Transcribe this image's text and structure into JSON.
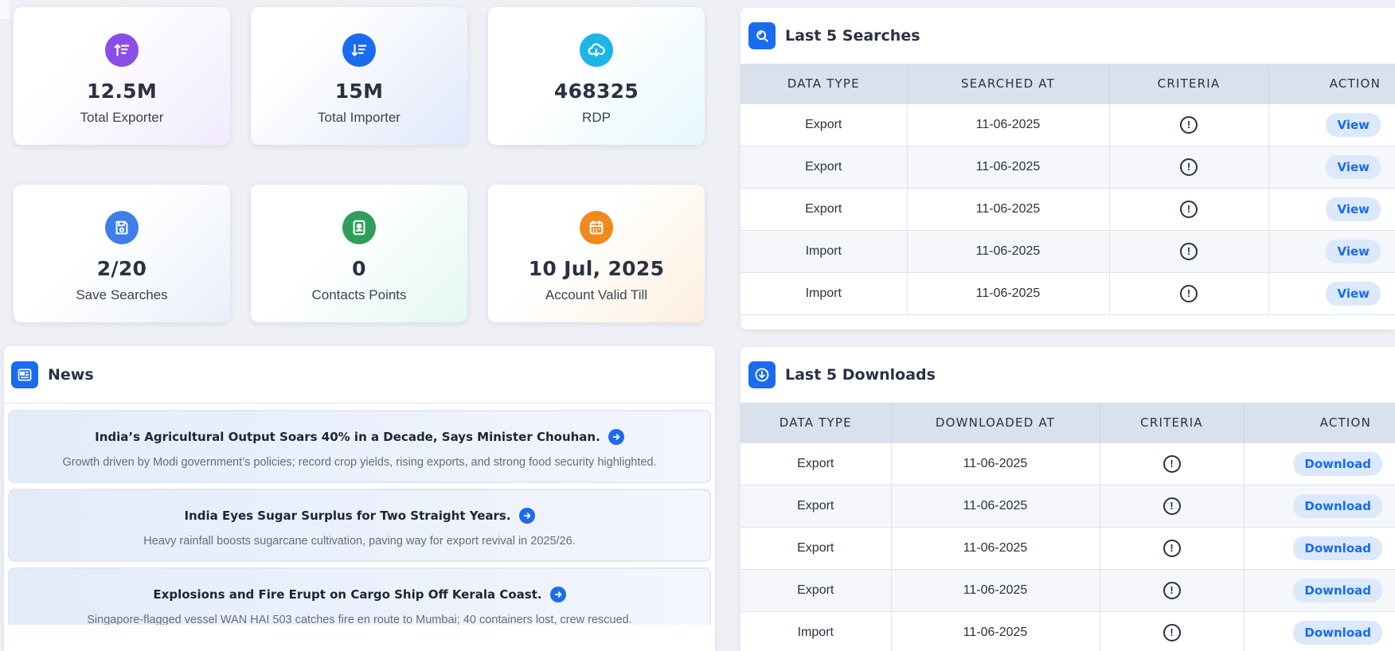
{
  "stats": [
    {
      "value": "12.5M",
      "label": "Total Exporter",
      "icon": "sort-ascending-icon",
      "color": "#8a4de8"
    },
    {
      "value": "15M",
      "label": "Total Importer",
      "icon": "sort-descending-icon",
      "color": "#1a6bf0"
    },
    {
      "value": "468325",
      "label": "RDP",
      "icon": "cloud-download-icon",
      "color": "#1bb5e6"
    },
    {
      "value": "2/20",
      "label": "Save Searches",
      "icon": "floppy-disk-icon",
      "color": "#3f7ee8"
    },
    {
      "value": "0",
      "label": "Contacts Points",
      "icon": "contact-card-icon",
      "color": "#2f9e5b"
    },
    {
      "value": "10 Jul, 2025",
      "label": "Account Valid Till",
      "icon": "calendar-icon",
      "color": "#f08a1c"
    }
  ],
  "news": {
    "title": "News",
    "items": [
      {
        "title": "India’s Agricultural Output Soars 40% in a Decade, Says Minister Chouhan.",
        "desc": "Growth driven by Modi government’s policies; record crop yields, rising exports, and strong food security highlighted."
      },
      {
        "title": "India Eyes Sugar Surplus for Two Straight Years.",
        "desc": "Heavy rainfall boosts sugarcane cultivation, paving way for export revival in 2025/26."
      },
      {
        "title": "Explosions and Fire Erupt on Cargo Ship Off Kerala Coast.",
        "desc": "Singapore-flagged vessel WAN HAI 503 catches fire en route to Mumbai; 40 containers lost, crew rescued."
      }
    ]
  },
  "searches": {
    "title": "Last 5 Searches",
    "headers": [
      "DATA TYPE",
      "SEARCHED AT",
      "CRITERIA",
      "ACTION"
    ],
    "action_label": "View",
    "rows": [
      {
        "type": "Export",
        "date": "11-06-2025"
      },
      {
        "type": "Export",
        "date": "11-06-2025"
      },
      {
        "type": "Export",
        "date": "11-06-2025"
      },
      {
        "type": "Import",
        "date": "11-06-2025"
      },
      {
        "type": "Import",
        "date": "11-06-2025"
      }
    ]
  },
  "downloads": {
    "title": "Last 5 Downloads",
    "headers": [
      "DATA TYPE",
      "DOWNLOADED AT",
      "CRITERIA",
      "ACTION"
    ],
    "action_label": "Download",
    "rows": [
      {
        "type": "Export",
        "date": "11-06-2025"
      },
      {
        "type": "Export",
        "date": "11-06-2025"
      },
      {
        "type": "Export",
        "date": "11-06-2025"
      },
      {
        "type": "Export",
        "date": "11-06-2025"
      },
      {
        "type": "Import",
        "date": "11-06-2025"
      }
    ]
  }
}
